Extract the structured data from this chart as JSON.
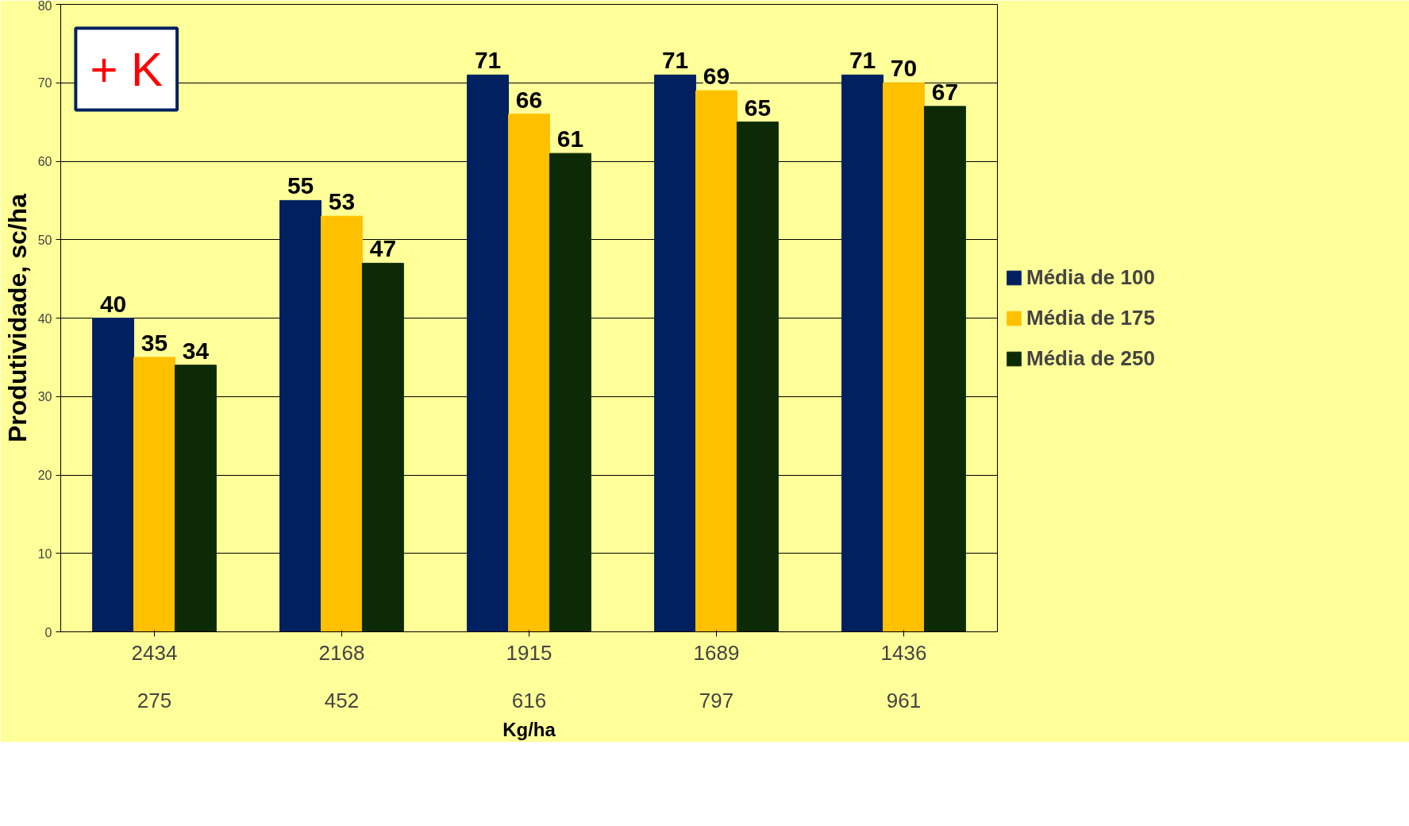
{
  "chart_data": {
    "type": "bar",
    "ylabel": "Produtividade, sc/ha",
    "xlabel": "Kg/ha",
    "categories": [
      "2434\n275",
      "2168\n452",
      "1915\n616",
      "1689\n797",
      "1436\n961"
    ],
    "series": [
      {
        "name": "Média de 100",
        "color": "#002060",
        "values": [
          40,
          55,
          71,
          71,
          71
        ]
      },
      {
        "name": "Média de 175",
        "color": "#ffc000",
        "values": [
          35,
          53,
          66,
          69,
          70
        ]
      },
      {
        "name": "Média de 250",
        "color": "#0c2a06",
        "values": [
          34,
          47,
          61,
          65,
          67
        ]
      }
    ],
    "ylim": [
      0,
      80
    ],
    "yticks": [
      0,
      10,
      20,
      30,
      40,
      50,
      60,
      70,
      80
    ],
    "grid": "y",
    "legend": "right",
    "data_labels": true,
    "annotations": [
      "+ K"
    ]
  }
}
